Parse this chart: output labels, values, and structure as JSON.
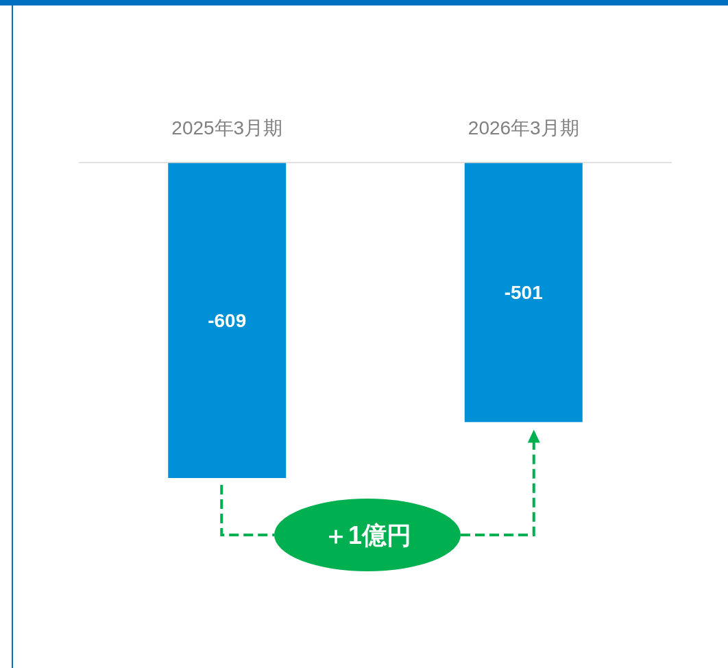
{
  "chart_data": {
    "type": "bar",
    "categories": [
      "2025年3月期",
      "2026年3月期"
    ],
    "values": [
      -609,
      -501
    ],
    "color": "#0090d8",
    "data_labels": true,
    "annotations": [
      "＋1億円"
    ]
  }
}
